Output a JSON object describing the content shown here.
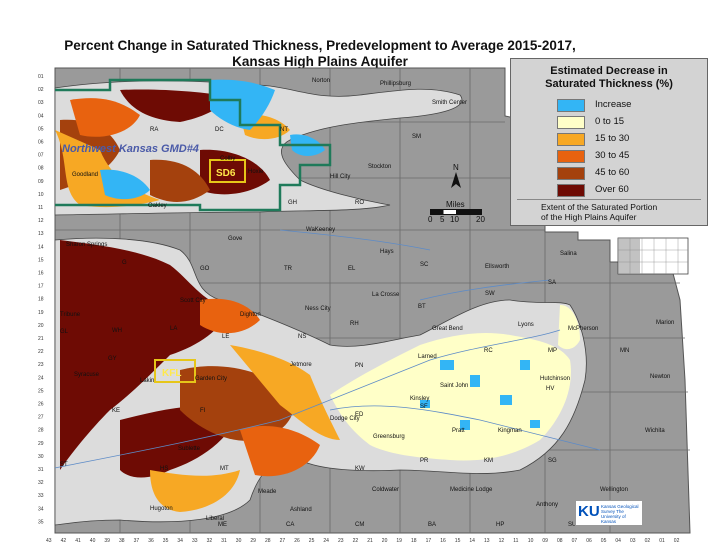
{
  "title": {
    "line1": "Percent Change in Saturated Thickness, Predevelopment to Average 2015-2017,",
    "line2": "Kansas High Plains Aquifer"
  },
  "legend": {
    "title_line1": "Estimated Decrease in",
    "title_line2": "Saturated Thickness (%)",
    "items": [
      {
        "label": "Increase",
        "color": "#33b5f5"
      },
      {
        "label": "0 to 15",
        "color": "#ffffc8"
      },
      {
        "label": "15 to 30",
        "color": "#f7a824"
      },
      {
        "label": "30 to 45",
        "color": "#e8620f"
      },
      {
        "label": "45 to 60",
        "color": "#a4410d"
      },
      {
        "label": "Over 60",
        "color": "#6e0b04"
      }
    ],
    "extent_line1": "Extent of the Saturated Portion",
    "extent_line2": "of the High Plains Aquifer"
  },
  "districts": {
    "gmd4": "Northwest Kansas GMD#4",
    "sd6": "SD6",
    "kfl": "KFL"
  },
  "cities": [
    "Norton",
    "Phillipsburg",
    "Smith Center",
    "Colby",
    "Hoxie",
    "Stockton",
    "Hill City",
    "Goodland",
    "Oakley",
    "WaKeeney",
    "Gove",
    "Hays",
    "Sharon Springs",
    "Ellsworth",
    "Salina",
    "La Crosse",
    "Ness City",
    "Tribune",
    "Scott City",
    "Dighton",
    "Great Bend",
    "Lyons",
    "McPherson",
    "Marion",
    "Larned",
    "Jetmore",
    "Syracuse",
    "Lakin",
    "Garden City",
    "Hutchinson",
    "Newton",
    "Saint John",
    "Kinsley",
    "Pratt",
    "Kingman",
    "Wichita",
    "Dodge City",
    "Greensburg",
    "Sublette",
    "Meade",
    "Coldwater",
    "Medicine Lodge",
    "Wellington",
    "Anthony",
    "Hugoton",
    "Liberal",
    "Ashland"
  ],
  "county_abbrevs": [
    "RA",
    "DC",
    "NT",
    "SM",
    "GH",
    "RO",
    "TR",
    "EL",
    "SA",
    "RC",
    "MN",
    "MP",
    "HV",
    "PN",
    "ED",
    "SF",
    "PR",
    "KM",
    "SG",
    "KW",
    "BA",
    "HP",
    "SU",
    "CA",
    "CM",
    "ME",
    "SW",
    "ST",
    "KE",
    "GL",
    "G",
    "GO",
    "WH",
    "LE",
    "NS",
    "RH",
    "BT",
    "FI",
    "MT",
    "HS",
    "GY",
    "LA",
    "SC"
  ],
  "scale": {
    "label": "Miles",
    "ticks": [
      "0",
      "5",
      "10",
      "20"
    ]
  },
  "north": "N",
  "row_labels": [
    "01",
    "02",
    "03",
    "04",
    "05",
    "06",
    "07",
    "08",
    "09",
    "10",
    "11",
    "12",
    "13",
    "14",
    "15",
    "16",
    "17",
    "18",
    "19",
    "20",
    "21",
    "22",
    "23",
    "24",
    "25",
    "26",
    "27",
    "28",
    "29",
    "30",
    "31",
    "32",
    "33",
    "34",
    "35"
  ],
  "col_labels": [
    "43",
    "42",
    "41",
    "40",
    "39",
    "38",
    "37",
    "36",
    "35",
    "34",
    "33",
    "32",
    "31",
    "30",
    "29",
    "28",
    "27",
    "26",
    "25",
    "24",
    "23",
    "22",
    "21",
    "20",
    "19",
    "18",
    "17",
    "16",
    "15",
    "14",
    "13",
    "12",
    "11",
    "10",
    "09",
    "08",
    "07",
    "06",
    "05",
    "04",
    "03",
    "02",
    "01",
    "02"
  ],
  "logo": {
    "mark": "KU",
    "text": "Kansas Geological Survey The University of Kansas"
  }
}
